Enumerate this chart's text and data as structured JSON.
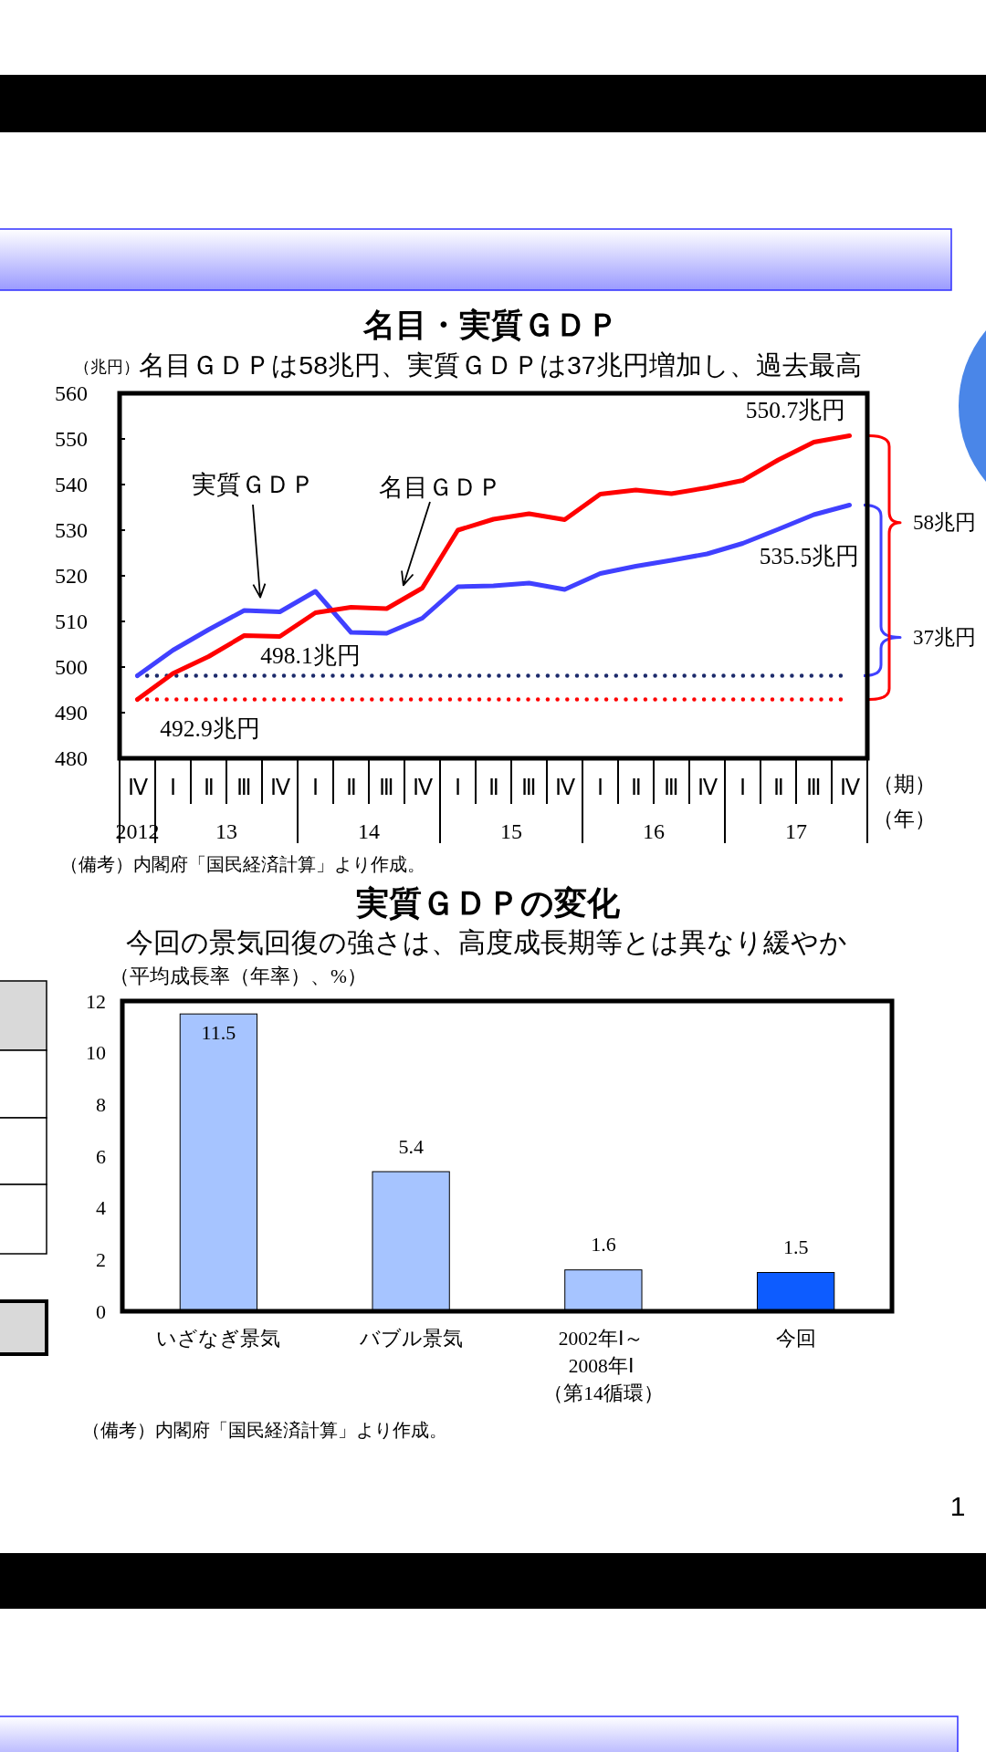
{
  "chart_data": [
    {
      "type": "line",
      "title": "名目・実質ＧＤＰ",
      "subtitle": "名目ＧＤＰは58兆円、実質ＧＤＰは37兆円増加し、過去最高",
      "ylabel": "（兆円）",
      "xlabel": "（期）",
      "categories": [
        "Ⅳ",
        "Ⅰ",
        "Ⅱ",
        "Ⅲ",
        "Ⅳ",
        "Ⅰ",
        "Ⅱ",
        "Ⅲ",
        "Ⅳ",
        "Ⅰ",
        "Ⅱ",
        "Ⅲ",
        "Ⅳ",
        "Ⅰ",
        "Ⅱ",
        "Ⅲ",
        "Ⅳ",
        "Ⅰ",
        "Ⅱ",
        "Ⅲ",
        "Ⅳ"
      ],
      "series": [
        {
          "name": "実質ＧＤＰ",
          "color": "#4040ff",
          "values": [
            498.1,
            503.7,
            508.2,
            512.4,
            512.1,
            516.6,
            507.6,
            507.4,
            510.7,
            517.6,
            517.8,
            518.4,
            517.0,
            520.5,
            522.1,
            523.4,
            524.8,
            527.1,
            530.2,
            533.4,
            535.5
          ],
          "value_labels": [
            null,
            null,
            null,
            null,
            null,
            null,
            null,
            null,
            null,
            null,
            null,
            null,
            null,
            null,
            null,
            null,
            null,
            null,
            null,
            null,
            "535.5兆円"
          ]
        },
        {
          "name": "名目ＧＤＰ",
          "color": "#ff0000",
          "values": [
            492.9,
            498.6,
            502.3,
            506.9,
            506.7,
            511.9,
            513.1,
            512.8,
            517.3,
            530.0,
            532.4,
            533.6,
            532.3,
            537.9,
            538.8,
            538.0,
            539.3,
            540.9,
            545.4,
            549.3,
            550.7
          ],
          "value_labels": [
            null,
            null,
            null,
            null,
            null,
            null,
            null,
            null,
            null,
            null,
            null,
            null,
            null,
            null,
            null,
            null,
            null,
            null,
            null,
            null,
            "550.7兆円"
          ]
        }
      ],
      "ylim": [
        480,
        560
      ],
      "yticks": [
        480,
        490,
        500,
        510,
        520,
        530,
        540,
        550,
        560
      ],
      "ref_lines": [
        {
          "axis": "y",
          "value": 498.1,
          "label": "498.1兆円",
          "color": "#1c2a6b",
          "line_style": "dotted"
        },
        {
          "axis": "y",
          "value": 492.9,
          "label": "492.9兆円",
          "color": "#ff0000",
          "line_style": "dotted"
        }
      ],
      "annotations": [
        "37兆円",
        "58兆円",
        "2012",
        "13",
        "14",
        "15",
        "16",
        "17",
        "（年）",
        "（備考）内閣府「国民経済計算」より作成。"
      ]
    },
    {
      "type": "bar",
      "title": "実質ＧＤＰの変化",
      "subtitle": "今回の景気回復の強さは、高度成長期等とは異なり緩やか",
      "ylabel": "（平均成長率（年率）、%）",
      "categories": [
        "いざなぎ景気",
        "バブル景気",
        "2002年Ⅰ～\n2008年Ⅰ\n（第14循環）",
        "今回"
      ],
      "values": [
        11.5,
        5.4,
        1.6,
        1.5
      ],
      "colors": [
        "#a6c4ff",
        "#a6c4ff",
        "#a6c4ff",
        "#0d5cff"
      ],
      "data_labels": true,
      "ylim": [
        0,
        12
      ],
      "yticks": [
        0,
        2,
        4,
        6,
        8,
        10,
        12
      ],
      "annotations": [
        "（備考）内閣府「国民経済計算」より作成。",
        "1"
      ]
    }
  ]
}
